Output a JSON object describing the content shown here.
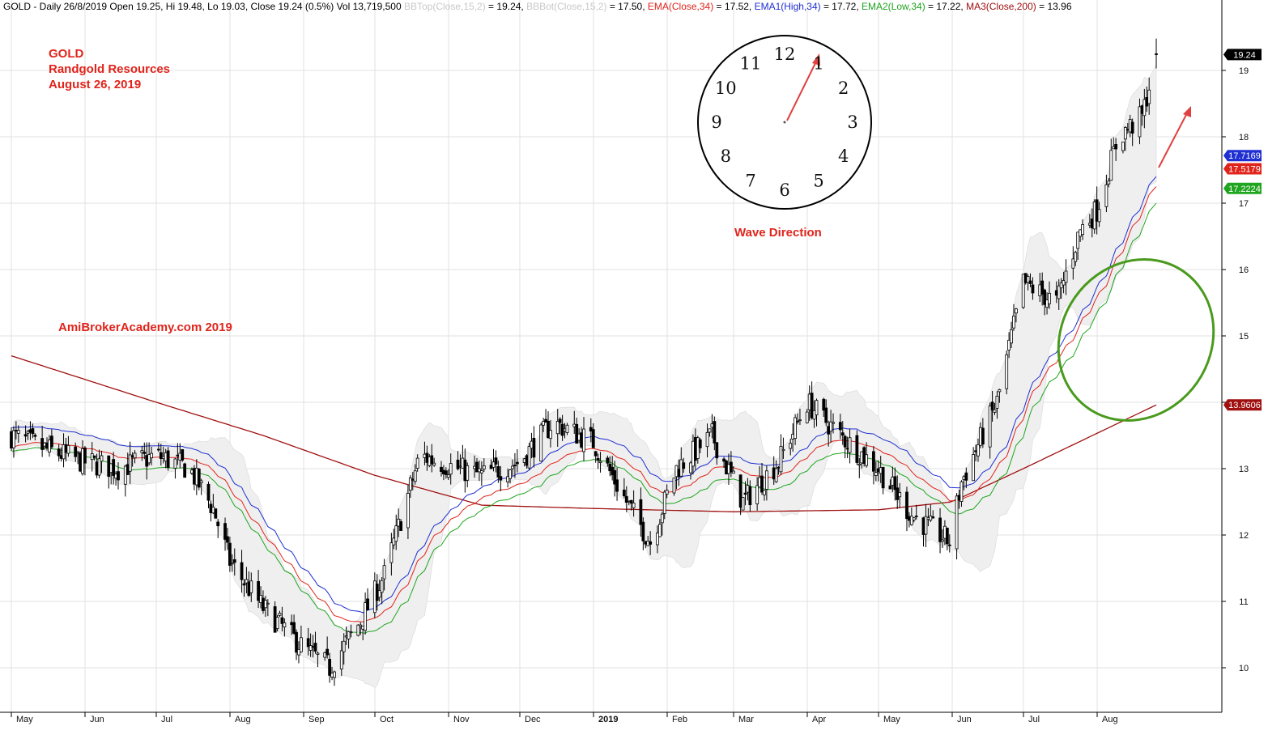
{
  "header": {
    "segments": [
      {
        "text": "GOLD - Daily 26/8/2019 Open 19.25, Hi 19.48, Lo 19.03, Close 19.24 (0.5%) Vol 13,719,500 ",
        "color": "#000000"
      },
      {
        "text": "BBTop(Close,15,2)",
        "color": "#c8c8c8"
      },
      {
        "text": " = 19.24, ",
        "color": "#000000"
      },
      {
        "text": "BBBot(Close,15,2)",
        "color": "#c8c8c8"
      },
      {
        "text": " = 17.50, ",
        "color": "#000000"
      },
      {
        "text": "EMA(Close,34)",
        "color": "#e0241b"
      },
      {
        "text": " = 17.52, ",
        "color": "#000000"
      },
      {
        "text": "EMA1(High,34)",
        "color": "#1f2fd1"
      },
      {
        "text": " = 17.72, ",
        "color": "#000000"
      },
      {
        "text": "EMA2(Low,34)",
        "color": "#1fa51f"
      },
      {
        "text": " = 17.22, ",
        "color": "#000000"
      },
      {
        "text": "MA3(Close,200)",
        "color": "#a01010"
      },
      {
        "text": " = 13.96",
        "color": "#000000"
      }
    ]
  },
  "annotations": {
    "ticker": "GOLD",
    "company": "Randgold Resources",
    "date": "August 26, 2019",
    "watermark": "AmiBrokerAcademy.com   2019",
    "wave_label": "Wave Direction"
  },
  "clock": {
    "numbers": [
      "12",
      "1",
      "2",
      "3",
      "4",
      "5",
      "6",
      "7",
      "8",
      "9",
      "10",
      "11"
    ],
    "hand_points_to": "1"
  },
  "colors": {
    "ema_close": "#e0241b",
    "ema_high": "#1f2fd1",
    "ema_low": "#1fa51f",
    "ma200": "#a01010",
    "bollinger_fill": "#efefef",
    "candle": "#000000",
    "arrow": "#e04040",
    "ellipse": "#4a9a1e",
    "grid": "#e2e2e2"
  },
  "chart_data": {
    "type": "candlestick",
    "x_axis": {
      "labels": [
        "May",
        "Jun",
        "Jul",
        "Aug",
        "Sep",
        "Oct",
        "Nov",
        "Dec",
        "2019",
        "Feb",
        "Mar",
        "Apr",
        "May",
        "Jun",
        "Jul",
        "Aug"
      ],
      "range": [
        "2018-05-01",
        "2019-08-26"
      ]
    },
    "y_axis": {
      "ticks": [
        10,
        11,
        12,
        13,
        14,
        15,
        16,
        17,
        18,
        19
      ],
      "range": [
        9.5,
        20.0
      ],
      "side": "right"
    },
    "value_tags": [
      {
        "label": "19.24",
        "series": "Close",
        "value": 19.24,
        "color": "#000000"
      },
      {
        "label": "17.7169",
        "series": "EMA1(High,34)",
        "value": 17.7169,
        "color": "#1f2fd1"
      },
      {
        "label": "17.5179",
        "series": "EMA(Close,34)",
        "value": 17.5179,
        "color": "#e0241b"
      },
      {
        "label": "17.2224",
        "series": "EMA2(Low,34)",
        "value": 17.2224,
        "color": "#1fa51f"
      },
      {
        "label": "13.9606",
        "series": "MA3(Close,200)",
        "value": 13.9606,
        "color": "#a01010"
      }
    ],
    "close_path": [
      {
        "date": "2018-05-01",
        "close": 13.5
      },
      {
        "date": "2018-05-15",
        "close": 13.3
      },
      {
        "date": "2018-06-01",
        "close": 13.1
      },
      {
        "date": "2018-06-15",
        "close": 13.0
      },
      {
        "date": "2018-07-01",
        "close": 13.2
      },
      {
        "date": "2018-07-15",
        "close": 13.0
      },
      {
        "date": "2018-07-25",
        "close": 12.4
      },
      {
        "date": "2018-08-01",
        "close": 11.6
      },
      {
        "date": "2018-08-15",
        "close": 10.9
      },
      {
        "date": "2018-09-01",
        "close": 10.3
      },
      {
        "date": "2018-09-12",
        "close": 10.0
      },
      {
        "date": "2018-09-25",
        "close": 10.7
      },
      {
        "date": "2018-10-05",
        "close": 11.4
      },
      {
        "date": "2018-10-20",
        "close": 13.2
      },
      {
        "date": "2018-11-05",
        "close": 13.0
      },
      {
        "date": "2018-11-15",
        "close": 12.9
      },
      {
        "date": "2018-12-01",
        "close": 13.1
      },
      {
        "date": "2018-12-15",
        "close": 13.7
      },
      {
        "date": "2019-01-01",
        "close": 13.4
      },
      {
        "date": "2019-01-15",
        "close": 12.5
      },
      {
        "date": "2019-01-25",
        "close": 11.9
      },
      {
        "date": "2019-02-05",
        "close": 13.0
      },
      {
        "date": "2019-02-20",
        "close": 13.5
      },
      {
        "date": "2019-03-05",
        "close": 12.5
      },
      {
        "date": "2019-03-20",
        "close": 13.1
      },
      {
        "date": "2019-04-01",
        "close": 14.0
      },
      {
        "date": "2019-04-15",
        "close": 13.5
      },
      {
        "date": "2019-05-01",
        "close": 13.0
      },
      {
        "date": "2019-05-15",
        "close": 12.3
      },
      {
        "date": "2019-05-31",
        "close": 11.9
      },
      {
        "date": "2019-06-05",
        "close": 12.8
      },
      {
        "date": "2019-06-20",
        "close": 14.0
      },
      {
        "date": "2019-07-01",
        "close": 15.8
      },
      {
        "date": "2019-07-15",
        "close": 15.5
      },
      {
        "date": "2019-07-25",
        "close": 16.6
      },
      {
        "date": "2019-08-01",
        "close": 16.9
      },
      {
        "date": "2019-08-10",
        "close": 18.0
      },
      {
        "date": "2019-08-20",
        "close": 18.3
      },
      {
        "date": "2019-08-26",
        "close": 19.24
      }
    ],
    "ma200_path": [
      {
        "date": "2018-05-01",
        "value": 14.7
      },
      {
        "date": "2018-07-01",
        "value": 14.0
      },
      {
        "date": "2018-08-15",
        "value": 13.5
      },
      {
        "date": "2018-10-01",
        "value": 12.9
      },
      {
        "date": "2018-11-15",
        "value": 12.45
      },
      {
        "date": "2019-01-01",
        "value": 12.4
      },
      {
        "date": "2019-03-01",
        "value": 12.35
      },
      {
        "date": "2019-05-01",
        "value": 12.38
      },
      {
        "date": "2019-06-01",
        "value": 12.5
      },
      {
        "date": "2019-07-01",
        "value": 13.0
      },
      {
        "date": "2019-08-26",
        "value": 13.96
      }
    ]
  }
}
